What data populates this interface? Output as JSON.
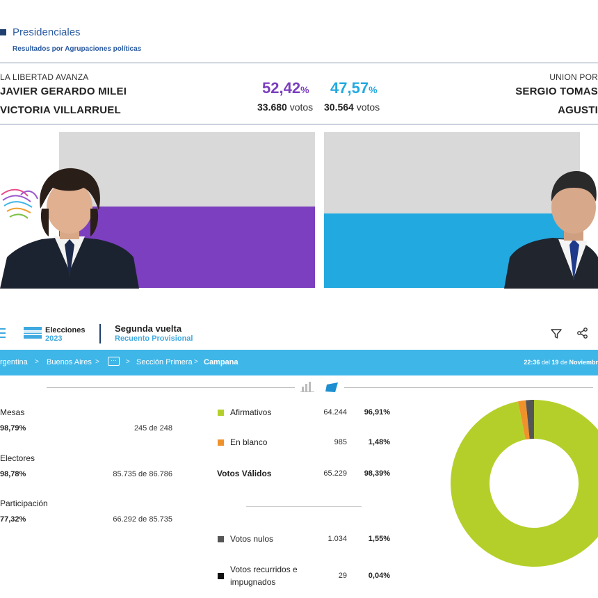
{
  "header": {
    "title": "Presidenciales",
    "subtitle": "Resultados por Agrupaciones políticas"
  },
  "candidates": [
    {
      "party": "LA LIBERTAD AVANZA",
      "president": "JAVIER GERARDO MILEI",
      "vice": "VICTORIA VILLARRUEL",
      "percent": "52,42",
      "percent_sign": "%",
      "votes": "33.680",
      "votes_label": "votos",
      "share": 52.42,
      "color": "#7b3fbf"
    },
    {
      "party": "UNION POR",
      "president": "SERGIO TOMAS",
      "vice": "AGUSTI",
      "percent": "47,57",
      "percent_sign": "%",
      "votes": "30.564",
      "votes_label": "votos",
      "share": 47.57,
      "color": "#22a9e0"
    }
  ],
  "app": {
    "brand_top": "Elecciones",
    "brand_year": "2023",
    "round_title": "Segunda vuelta",
    "round_sub": "Recuento Provisional"
  },
  "breadcrumb": {
    "items": [
      "rgentina",
      "Buenos Aires",
      "Sección Primera"
    ],
    "more": "···",
    "current": "Campana",
    "time": "22:36",
    "del": "del",
    "day": "19",
    "de": "de",
    "month": "Noviembr"
  },
  "stats": {
    "mesas_label": "Mesas",
    "mesas_pct": "98,79%",
    "mesas_val": "245 de 248",
    "electores_label": "Electores",
    "electores_pct": "98,78%",
    "electores_val": "85.735 de 86.786",
    "participacion_label": "Participación",
    "participacion_pct": "77,32%",
    "participacion_val": "66.292 de 85.735"
  },
  "results": {
    "afirmativos_label": "Afirmativos",
    "afirmativos_num": "64.244",
    "afirmativos_pct": "96,91%",
    "blanco_label": "En blanco",
    "blanco_num": "985",
    "blanco_pct": "1,48%",
    "validos_label": "Votos Válidos",
    "validos_num": "65.229",
    "validos_pct": "98,39%",
    "nulos_label": "Votos nulos",
    "nulos_num": "1.034",
    "nulos_pct": "1,55%",
    "recurridos_label_1": "Votos recurridos e",
    "recurridos_label_2": "impugnados",
    "recurridos_num": "29",
    "recurridos_pct": "0,04%"
  },
  "colors": {
    "afirmativos": "#b5cf2a",
    "blanco": "#f0922b",
    "nulos": "#555555",
    "recurridos": "#111111",
    "accent": "#3fb6e8"
  },
  "chart_data": {
    "type": "pie",
    "title": "",
    "categories": [
      "Afirmativos",
      "En blanco",
      "Votos nulos",
      "Votos recurridos e impugnados"
    ],
    "values": [
      96.91,
      1.48,
      1.55,
      0.04
    ]
  }
}
